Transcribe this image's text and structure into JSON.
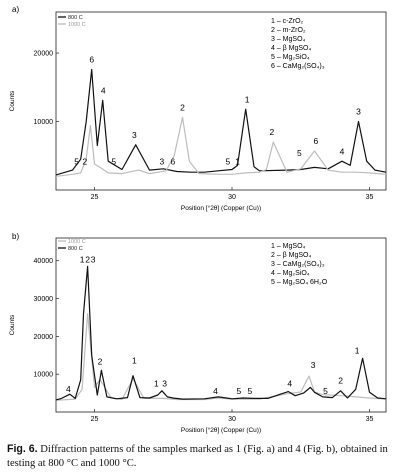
{
  "figure": {
    "caption_label": "Fig. 6.",
    "caption_text": "Diffraction patterns of the samples marked as 1 (Fig. a) and 4 (Fig. b), obtained in testing at 800 °C and 1000 °C."
  },
  "chart_data": [
    {
      "type": "line",
      "panel_label": "a)",
      "xlabel": "Position [°2θ] (Copper (Cu))",
      "ylabel": "Counts",
      "xlim": [
        23.6,
        35.6
      ],
      "ylim": [
        0,
        26000
      ],
      "xticks": [
        25,
        30,
        35
      ],
      "yticks": [
        10000,
        20000
      ],
      "series": [
        {
          "name": "800 C",
          "color": "#111111",
          "x": [
            23.6,
            24.2,
            24.5,
            24.7,
            24.9,
            25.1,
            25.3,
            25.5,
            26.0,
            26.5,
            27.0,
            27.5,
            28.0,
            28.5,
            29.0,
            29.5,
            30.0,
            30.2,
            30.5,
            30.8,
            31.0,
            32.0,
            32.5,
            33.0,
            33.5,
            34.0,
            34.3,
            34.6,
            34.9,
            35.2,
            35.6
          ],
          "y": [
            2200,
            2900,
            4500,
            10000,
            17600,
            6500,
            13100,
            4200,
            3000,
            6600,
            2900,
            3100,
            2700,
            2600,
            2600,
            2800,
            3000,
            3600,
            11800,
            3400,
            2800,
            2900,
            3000,
            3300,
            3100,
            4200,
            3600,
            10000,
            4200,
            2900,
            2600
          ]
        },
        {
          "name": "1000 C",
          "color": "#bdbdbd",
          "x": [
            23.6,
            24.2,
            24.5,
            24.7,
            24.85,
            25.0,
            25.2,
            25.5,
            26.0,
            26.6,
            27.0,
            27.6,
            27.9,
            28.2,
            28.45,
            28.8,
            29.5,
            30.0,
            30.5,
            31.0,
            31.25,
            31.5,
            32.0,
            32.5,
            33.0,
            33.5,
            34.0,
            34.5,
            35.0,
            35.6
          ],
          "y": [
            2000,
            2300,
            2500,
            4500,
            9400,
            3800,
            3300,
            2500,
            2400,
            2900,
            2400,
            2800,
            5000,
            10600,
            4200,
            2400,
            2300,
            2300,
            2500,
            2600,
            3000,
            7000,
            2600,
            3100,
            5700,
            2900,
            2600,
            2600,
            2500,
            2300
          ]
        }
      ],
      "annotations": [
        {
          "x": 24.35,
          "y": 3700,
          "text": "5"
        },
        {
          "x": 24.65,
          "y": 3700,
          "text": "2"
        },
        {
          "x": 24.9,
          "y": 18600,
          "text": "6"
        },
        {
          "x": 25.32,
          "y": 14100,
          "text": "4"
        },
        {
          "x": 25.7,
          "y": 3700,
          "text": "5"
        },
        {
          "x": 26.45,
          "y": 7600,
          "text": "3"
        },
        {
          "x": 27.45,
          "y": 3700,
          "text": "3"
        },
        {
          "x": 27.85,
          "y": 3700,
          "text": "6"
        },
        {
          "x": 28.2,
          "y": 11600,
          "text": "2"
        },
        {
          "x": 29.85,
          "y": 3700,
          "text": "5"
        },
        {
          "x": 30.2,
          "y": 3700,
          "text": "1"
        },
        {
          "x": 30.55,
          "y": 12800,
          "text": "1"
        },
        {
          "x": 31.45,
          "y": 8000,
          "text": "2"
        },
        {
          "x": 32.45,
          "y": 5000,
          "text": "5"
        },
        {
          "x": 33.05,
          "y": 6700,
          "text": "6"
        },
        {
          "x": 34.0,
          "y": 5200,
          "text": "4"
        },
        {
          "x": 34.6,
          "y": 11000,
          "text": "3"
        }
      ],
      "legend_labels": [
        "1 – c-ZrO₂",
        "2 – m-ZrO₂",
        "3 – MgSO₄",
        "4 – β MgSO₄",
        "5 – Mg₂SiO₄",
        "6 – CaMg₂(SO₄)₃"
      ]
    },
    {
      "type": "line",
      "panel_label": "b)",
      "xlabel": "Position [°2θ] (Copper (Cu))",
      "ylabel": "Counts",
      "xlim": [
        23.6,
        35.6
      ],
      "ylim": [
        0,
        46000
      ],
      "xticks": [
        25,
        30,
        35
      ],
      "yticks": [
        10000,
        20000,
        30000,
        40000
      ],
      "series": [
        {
          "name": "1000 C",
          "color": "#bdbdbd",
          "x": [
            23.6,
            24.3,
            24.55,
            24.75,
            25.0,
            25.2,
            25.6,
            26.0,
            26.4,
            26.8,
            27.5,
            28.0,
            29.0,
            29.5,
            30.0,
            31.0,
            32.0,
            32.5,
            32.8,
            33.0,
            33.3,
            34.0,
            34.5,
            35.0,
            35.6
          ],
          "y": [
            3100,
            3400,
            6000,
            26000,
            6500,
            8600,
            3800,
            3300,
            8800,
            3600,
            3600,
            3300,
            3300,
            3700,
            3400,
            3400,
            4800,
            5300,
            9500,
            5300,
            4600,
            4300,
            4000,
            3700,
            3400
          ]
        },
        {
          "name": "800 C",
          "color": "#111111",
          "x": [
            23.6,
            23.8,
            24.1,
            24.3,
            24.5,
            24.6,
            24.75,
            24.9,
            25.1,
            25.25,
            25.45,
            25.8,
            26.2,
            26.4,
            26.65,
            27.0,
            27.3,
            27.45,
            27.65,
            27.85,
            28.2,
            29.0,
            29.5,
            29.8,
            30.0,
            30.4,
            30.8,
            31.3,
            31.8,
            32.05,
            32.3,
            32.6,
            32.85,
            33.0,
            33.3,
            33.65,
            33.95,
            34.2,
            34.5,
            34.75,
            35.0,
            35.3,
            35.6
          ],
          "y": [
            3200,
            3600,
            4700,
            3600,
            8500,
            26000,
            38500,
            15000,
            4500,
            11000,
            4000,
            3500,
            3800,
            9600,
            3800,
            3700,
            4500,
            5600,
            4000,
            3700,
            3400,
            3500,
            4000,
            3700,
            3500,
            3700,
            3600,
            3600,
            4800,
            5400,
            4300,
            5000,
            6500,
            5200,
            4000,
            3800,
            5600,
            3700,
            6000,
            14200,
            5200,
            3700,
            3500
          ]
        }
      ],
      "annotations": [
        {
          "x": 24.05,
          "y": 5300,
          "text": "4"
        },
        {
          "x": 24.55,
          "y": 39500,
          "text": "1"
        },
        {
          "x": 24.75,
          "y": 39500,
          "text": "2"
        },
        {
          "x": 24.95,
          "y": 39500,
          "text": "3"
        },
        {
          "x": 25.2,
          "y": 12500,
          "text": "2"
        },
        {
          "x": 26.45,
          "y": 12800,
          "text": "1"
        },
        {
          "x": 27.25,
          "y": 6800,
          "text": "1"
        },
        {
          "x": 27.55,
          "y": 6800,
          "text": "3"
        },
        {
          "x": 29.4,
          "y": 4800,
          "text": "4"
        },
        {
          "x": 30.25,
          "y": 4800,
          "text": "5"
        },
        {
          "x": 30.65,
          "y": 4800,
          "text": "5"
        },
        {
          "x": 32.1,
          "y": 6700,
          "text": "4"
        },
        {
          "x": 32.95,
          "y": 11600,
          "text": "3"
        },
        {
          "x": 33.4,
          "y": 4800,
          "text": "5"
        },
        {
          "x": 33.95,
          "y": 7600,
          "text": "2"
        },
        {
          "x": 34.55,
          "y": 15400,
          "text": "1"
        }
      ],
      "legend_labels": [
        "1 – MgSO₄",
        "2 – β MgSO₄",
        "3 – CaMg₂(SO₄)₃",
        "4 – Mg₂SiO₄",
        "5 – Mg₂SO₄ 6H₂O"
      ]
    }
  ]
}
